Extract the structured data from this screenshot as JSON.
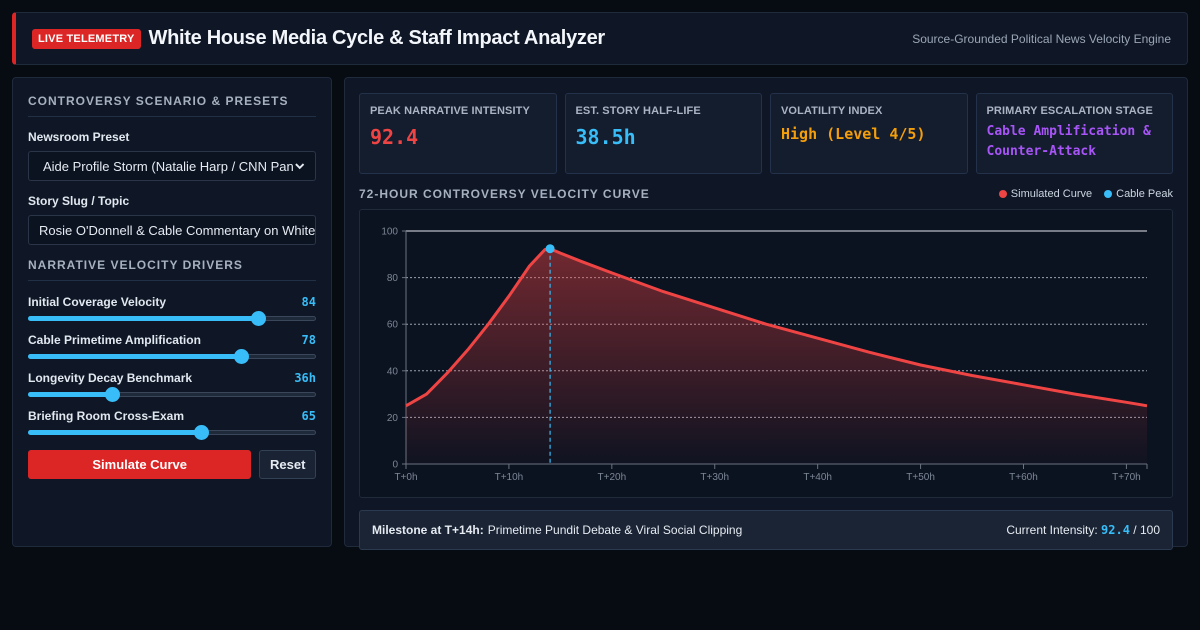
{
  "header": {
    "badge": "LIVE TELEMETRY",
    "title": "White House Media Cycle & Staff Impact Analyzer",
    "subtitle": "Source-Grounded Political News Velocity Engine"
  },
  "sidebar": {
    "scenario_title": "CONTROVERSY SCENARIO & PRESETS",
    "preset_label": "Newsroom Preset",
    "preset_value": "Aide Profile Storm (Natalie Harp / CNN Panel)",
    "slug_label": "Story Slug / Topic",
    "slug_value": "Rosie O'Donnell & Cable Commentary on White House",
    "drivers_title": "NARRATIVE VELOCITY DRIVERS",
    "sliders": [
      {
        "label": "Initial Coverage Velocity",
        "display": "84",
        "fraction": 0.8
      },
      {
        "label": "Cable Primetime Amplification",
        "display": "78",
        "fraction": 0.74
      },
      {
        "label": "Longevity Decay Benchmark",
        "display": "36h",
        "fraction": 0.29
      },
      {
        "label": "Briefing Room Cross-Exam",
        "display": "65",
        "fraction": 0.6
      }
    ],
    "simulate_label": "Simulate Curve",
    "reset_label": "Reset"
  },
  "metrics": [
    {
      "label": "PEAK NARRATIVE INTENSITY",
      "value": "92.4",
      "color": "#ef4444"
    },
    {
      "label": "EST. STORY HALF-LIFE",
      "value": "38.5h",
      "color": "#38bdf8"
    },
    {
      "label": "VOLATILITY INDEX",
      "value": "High (Level 4/5)",
      "color": "#f59e0b"
    },
    {
      "label": "PRIMARY ESCALATION STAGE",
      "value": "Cable Amplification & Counter-Attack",
      "color": "#a855f7"
    }
  ],
  "chart_section": {
    "title": "72-HOUR CONTROVERSY VELOCITY CURVE",
    "legend": [
      {
        "label": "Simulated Curve",
        "color": "#ef4444"
      },
      {
        "label": "Cable Peak",
        "color": "#38bdf8"
      }
    ]
  },
  "chart_data": {
    "type": "area",
    "x_ticks": [
      "T+0h",
      "T+10h",
      "T+20h",
      "T+30h",
      "T+40h",
      "T+50h",
      "T+60h",
      "T+70h"
    ],
    "y_ticks": [
      0,
      20,
      40,
      60,
      80,
      100
    ],
    "xlim": [
      0,
      72
    ],
    "ylim": [
      0,
      100
    ],
    "grid": true,
    "series": [
      {
        "name": "Simulated Curve",
        "x": [
          0,
          2,
          4,
          6,
          8,
          10,
          12,
          13.5,
          14,
          15,
          17,
          20,
          25,
          30,
          35,
          40,
          45,
          50,
          55,
          60,
          65,
          70,
          72
        ],
        "y": [
          25,
          30,
          39,
          49,
          60,
          72,
          85,
          92,
          92.4,
          90.5,
          87,
          82,
          74,
          67,
          60,
          54,
          48,
          42.5,
          38,
          34,
          30,
          26.5,
          25
        ]
      }
    ],
    "peak_marker": {
      "x": 14,
      "y": 92.4
    }
  },
  "milestone": {
    "label": "Milestone at T+14h:",
    "text": "Primetime Pundit Debate & Viral Social Clipping",
    "current_label": "Current Intensity:",
    "current_value": "92.4",
    "current_max": "/ 100"
  }
}
